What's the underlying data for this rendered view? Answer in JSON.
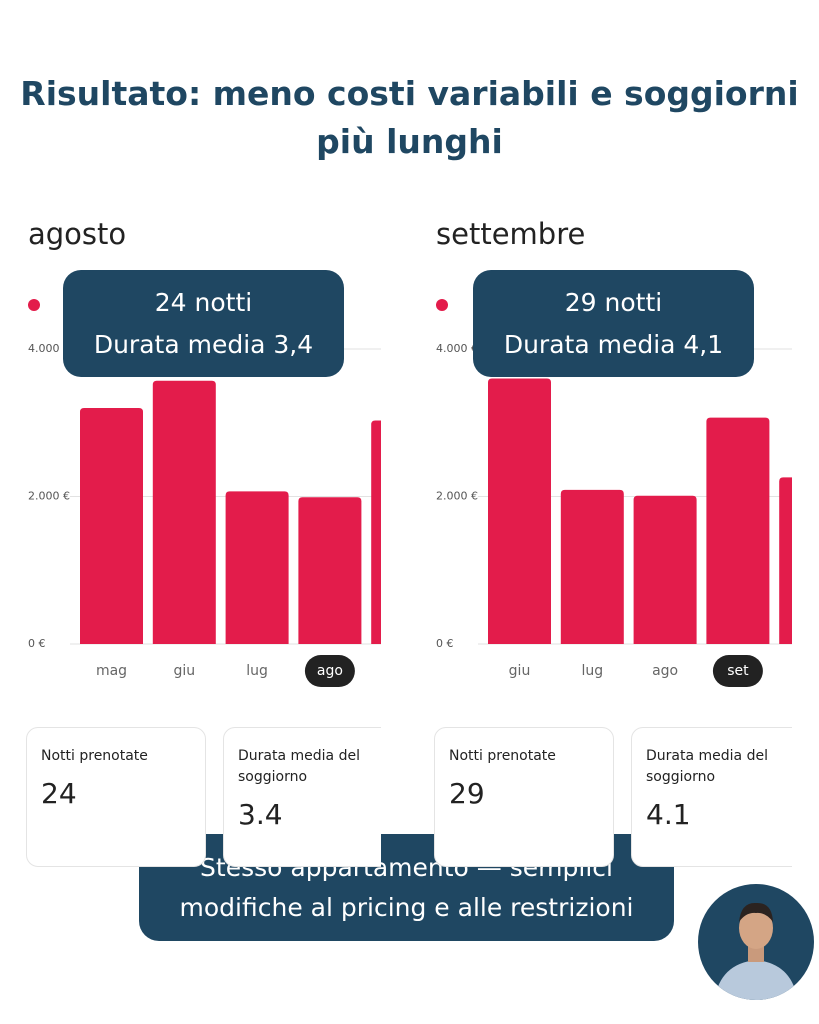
{
  "heading": [
    "Risultato: meno costi variabili e soggiorni",
    "più lunghi"
  ],
  "chart_data": [
    {
      "type": "bar",
      "title": "agosto",
      "categories": [
        "mag",
        "giu",
        "lug",
        "ago",
        null
      ],
      "values": [
        3200,
        3570,
        2070,
        1990,
        3030
      ],
      "color": "#e31c4b",
      "selected": 3,
      "ylim": [
        0,
        4000
      ],
      "yticks": [
        {
          "value": 0,
          "label": "0 €"
        },
        {
          "value": 2000,
          "label": "2.000 €"
        },
        {
          "value": 4000,
          "label": "4.000 €"
        }
      ],
      "grid": true
    },
    {
      "type": "bar",
      "title": "settembre",
      "categories": [
        "giu",
        "lug",
        "ago",
        "set",
        null
      ],
      "values": [
        3600,
        2090,
        2010,
        3070,
        2260
      ],
      "color": "#e31c4b",
      "selected": 3,
      "ylim": [
        0,
        4000
      ],
      "yticks": [
        {
          "value": 0,
          "label": "0 €"
        },
        {
          "value": 2000,
          "label": "2.000 €"
        },
        {
          "value": 4000,
          "label": "4.000 €"
        }
      ],
      "grid": true
    }
  ],
  "panels": [
    {
      "overlay": [
        "24 notti",
        "Durata media 3,4"
      ],
      "cards": [
        {
          "label": "Notti prenotate",
          "value": 24
        },
        {
          "label": "Durata media del soggiorno",
          "value": "3.4"
        }
      ]
    },
    {
      "overlay": [
        "29 notti",
        "Durata media 4,1"
      ],
      "cards": [
        {
          "label": "Notti prenotate",
          "value": 29
        },
        {
          "label": "Durata media del soggiorno",
          "value": "4.1"
        }
      ]
    }
  ],
  "banner": [
    "Stesso appartamento — semplici",
    "modifiche al pricing e alle restrizioni"
  ]
}
